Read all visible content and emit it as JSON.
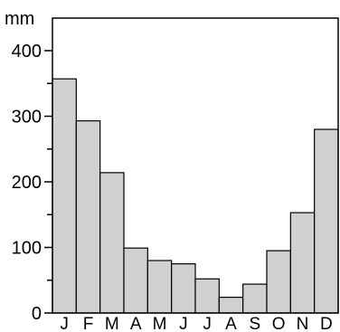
{
  "chart_data": {
    "type": "bar",
    "title": "",
    "xlabel": "",
    "ylabel": "",
    "unit": "mm",
    "categories": [
      "J",
      "F",
      "M",
      "A",
      "M",
      "J",
      "J",
      "A",
      "S",
      "O",
      "N",
      "D"
    ],
    "values": [
      357,
      293,
      214,
      99,
      80,
      75,
      52,
      24,
      44,
      95,
      153,
      280
    ],
    "ylim": [
      0,
      400
    ],
    "yticks": [
      0,
      100,
      200,
      300,
      400
    ],
    "yminor_step": 50,
    "grid": false,
    "legend": "none",
    "colors": {
      "bar_fill": "#d0d0d0",
      "bar_stroke": "#000000",
      "axis": "#000000",
      "text": "#000000"
    }
  }
}
